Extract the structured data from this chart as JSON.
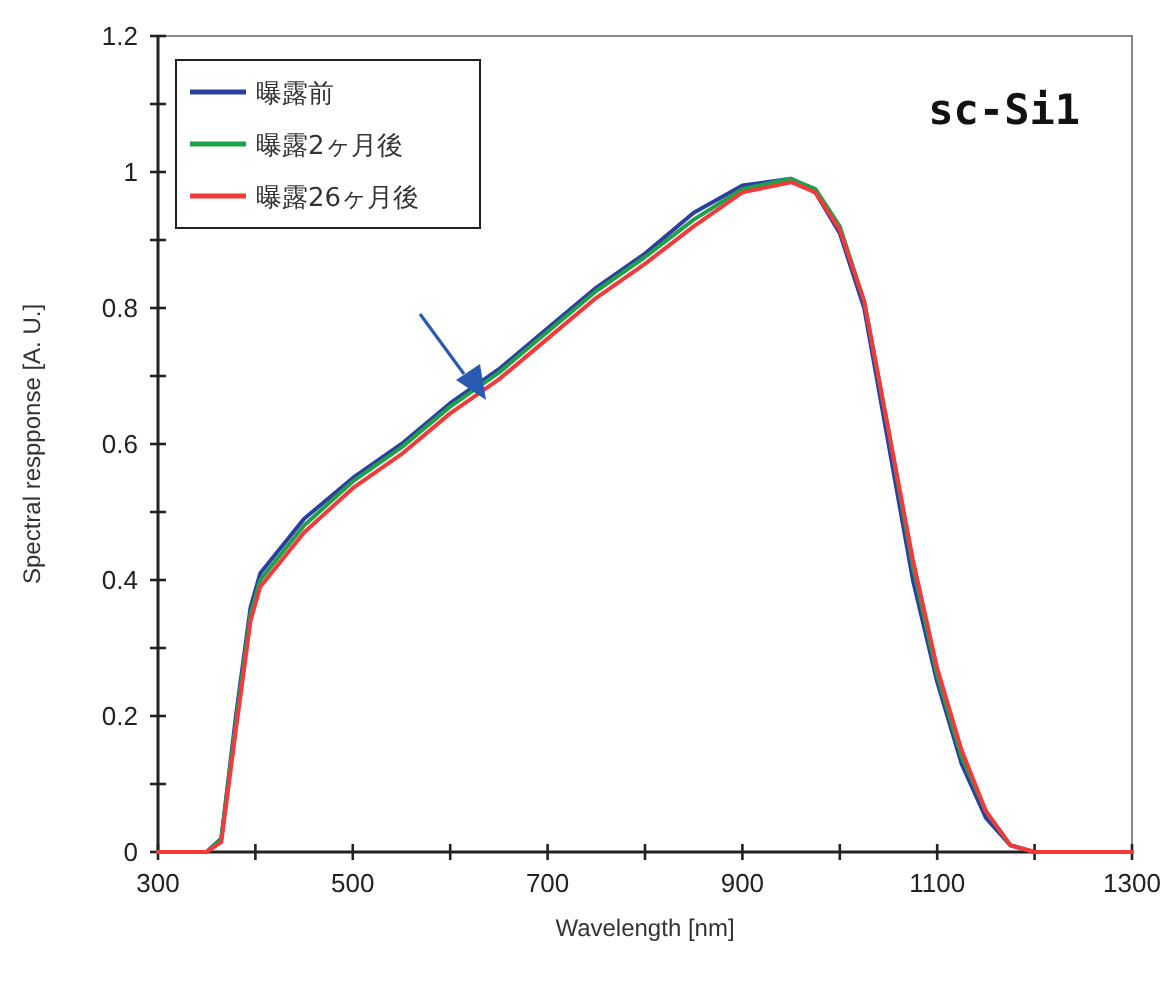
{
  "chart_data": {
    "type": "line",
    "xlabel": "Wavelength  [nm]",
    "ylabel": "Spectral respponse [A. U.]",
    "annotations": [
      "sc-Si1"
    ],
    "xlim": [
      300,
      1300
    ],
    "ylim": [
      0,
      1.2
    ],
    "xticks": [
      300,
      {
        "value": 400,
        "label": null
      },
      500,
      {
        "value": 600,
        "label": null
      },
      700,
      {
        "value": 800,
        "label": null
      },
      900,
      {
        "value": 1000,
        "label": null
      },
      1100,
      {
        "value": 1200,
        "label": null
      },
      1300
    ],
    "yticks": [
      0,
      {
        "value": 0.1,
        "label": null
      },
      0.2,
      {
        "value": 0.3,
        "label": null
      },
      0.4,
      {
        "value": 0.5,
        "label": null
      },
      0.6,
      {
        "value": 0.7,
        "label": null
      },
      0.8,
      {
        "value": 0.9,
        "label": null
      },
      1,
      {
        "value": 1.1,
        "label": null
      },
      1.2
    ],
    "legend": "top left",
    "marker": "none",
    "line_style": "solid",
    "series": [
      {
        "name": "曝露前",
        "color": "#2b3f9e",
        "x": [
          300,
          350,
          365,
          380,
          395,
          405,
          450,
          500,
          550,
          600,
          650,
          700,
          750,
          800,
          850,
          900,
          950,
          975,
          1000,
          1025,
          1050,
          1075,
          1100,
          1125,
          1150,
          1175,
          1200,
          1300
        ],
        "values": [
          0,
          0,
          0.02,
          0.2,
          0.36,
          0.41,
          0.49,
          0.55,
          0.6,
          0.66,
          0.71,
          0.77,
          0.83,
          0.88,
          0.94,
          0.98,
          0.99,
          0.97,
          0.91,
          0.8,
          0.6,
          0.4,
          0.25,
          0.13,
          0.05,
          0.01,
          0,
          0
        ]
      },
      {
        "name": "曝露2ヶ月後",
        "color": "#1fa04a",
        "x": [
          300,
          350,
          365,
          380,
          395,
          405,
          450,
          500,
          550,
          600,
          650,
          700,
          750,
          800,
          850,
          900,
          950,
          975,
          1000,
          1025,
          1050,
          1075,
          1100,
          1125,
          1150,
          1175
        ],
        "values": [
          0,
          0,
          0.02,
          0.19,
          0.35,
          0.4,
          0.48,
          0.545,
          0.595,
          0.655,
          0.705,
          0.765,
          0.825,
          0.875,
          0.93,
          0.975,
          0.99,
          0.975,
          0.92,
          0.81,
          0.62,
          0.42,
          0.26,
          0.14,
          0.06,
          0.01
        ]
      },
      {
        "name": "曝露26ヶ月後",
        "color": "#f23a3a",
        "x": [
          300,
          350,
          365,
          380,
          395,
          405,
          450,
          500,
          550,
          600,
          650,
          700,
          750,
          800,
          850,
          900,
          950,
          975,
          1000,
          1025,
          1050,
          1075,
          1100,
          1125,
          1150,
          1175,
          1200,
          1300
        ],
        "values": [
          0,
          0,
          0.015,
          0.18,
          0.34,
          0.39,
          0.47,
          0.535,
          0.585,
          0.645,
          0.695,
          0.755,
          0.815,
          0.865,
          0.92,
          0.97,
          0.985,
          0.97,
          0.915,
          0.81,
          0.62,
          0.43,
          0.27,
          0.15,
          0.06,
          0.01,
          0,
          0
        ]
      }
    ]
  }
}
